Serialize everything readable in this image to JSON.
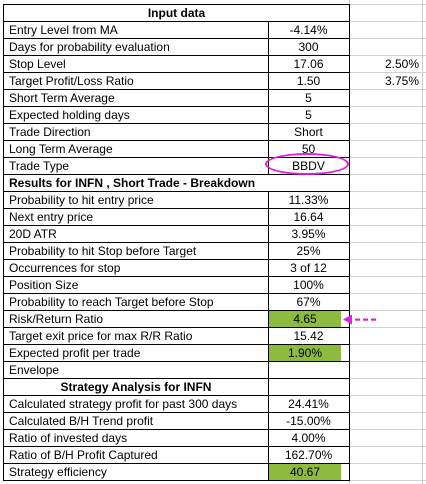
{
  "sheet": {
    "header_input": "Input data",
    "rows_input": [
      {
        "label": "Entry Level from MA",
        "value": "-4.14%"
      },
      {
        "label": "Days for probability evaluation",
        "value": "300"
      },
      {
        "label": "Stop Level",
        "value": "17.06",
        "extra": "2.50%"
      },
      {
        "label": "Target Profit/Loss Ratio",
        "value": "1.50",
        "extra": "3.75%"
      },
      {
        "label": "Short Term Average",
        "value": "5"
      },
      {
        "label": "Expected holding days",
        "value": "5"
      },
      {
        "label": "Trade Direction",
        "value": "Short"
      },
      {
        "label": "Long Term Average",
        "value": "50"
      },
      {
        "label": "Trade Type",
        "value": "BBDV"
      }
    ],
    "header_results": "Results for INFN , Short Trade - Breakdown",
    "rows_results": [
      {
        "label": "Probability to hit entry price",
        "value": "11.33%"
      },
      {
        "label": "Next entry price",
        "value": "16.64"
      },
      {
        "label": "20D ATR",
        "value": "3.95%"
      },
      {
        "label": "Probability to hit Stop before Target",
        "value": "25%"
      },
      {
        "label": "Occurrences for stop",
        "value": "3 of 12"
      },
      {
        "label": "Position Size",
        "value": "100%"
      },
      {
        "label": "Probability to reach Target before Stop",
        "value": "67%"
      },
      {
        "label": "Risk/Return Ratio",
        "value": "4.65",
        "highlight": "#8dbb3f"
      },
      {
        "label": "Target exit price for max R/R Ratio",
        "value": "15.42"
      },
      {
        "label": "Expected profit per trade",
        "value": "1.90%",
        "highlight": "#8dbb3f"
      },
      {
        "label": "Envelope",
        "value": ""
      }
    ],
    "header_strategy": "Strategy Analysis for INFN",
    "rows_strategy": [
      {
        "label": "Calculated strategy profit for past 300 days",
        "value": "24.41%"
      },
      {
        "label": "Calculated B/H Trend profit",
        "value": "-15.00%"
      },
      {
        "label": "Ratio of invested days",
        "value": "4.00%"
      },
      {
        "label": "Ratio of B/H Profit Captured",
        "value": "162.70%"
      },
      {
        "label": "Strategy efficiency",
        "value": "40.67",
        "highlight": "#8dbb3f"
      }
    ]
  },
  "annotations": {
    "ellipse_color": "#e21ce2",
    "arrow_color": "#e21ce2",
    "arrow_icon": "dashed-left-arrow-icon"
  }
}
